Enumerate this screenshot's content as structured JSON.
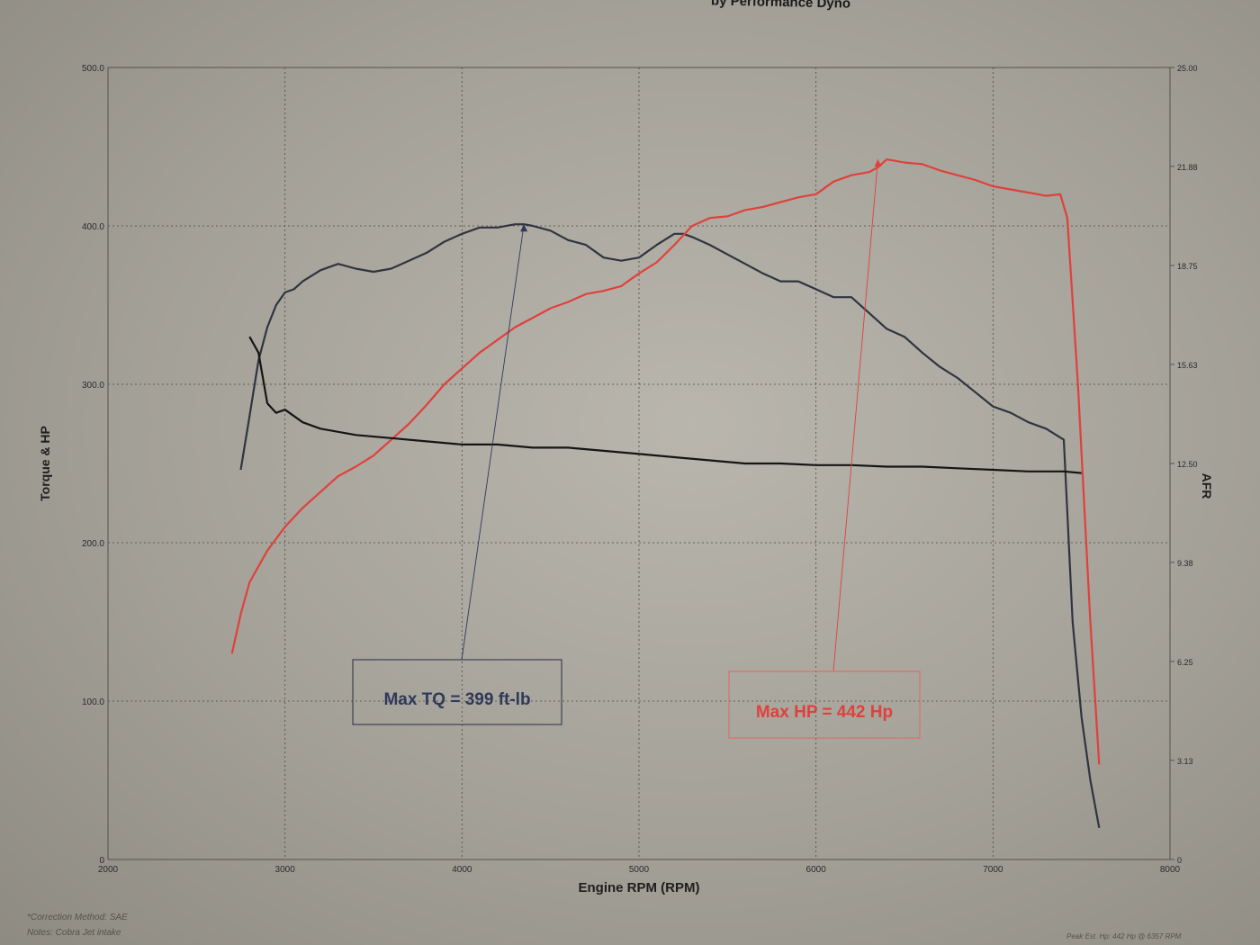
{
  "header": "by Performance Dyno",
  "chart_data": {
    "type": "line",
    "xlabel": "Engine RPM (RPM)",
    "ylabel_left": "Torque & HP",
    "ylabel_right": "AFR",
    "xlim": [
      2000,
      8000
    ],
    "ylim_left": [
      0,
      500
    ],
    "ylim_right": [
      0,
      25
    ],
    "x_ticks": [
      "2000",
      "3000",
      "4000",
      "5000",
      "6000",
      "7000",
      "8000"
    ],
    "y_ticks_left": [
      "0",
      "100.0",
      "200.0",
      "300.0",
      "400.0",
      "500.0"
    ],
    "y_ticks_right": [
      "0",
      "3.13",
      "6.25",
      "9.38",
      "12.50",
      "15.63",
      "18.75",
      "21.88",
      "25.00"
    ],
    "grid": true,
    "series": [
      {
        "name": "Torque",
        "axis": "left",
        "color": "#2f3440",
        "x": [
          2750,
          2800,
          2850,
          2900,
          2950,
          3000,
          3050,
          3100,
          3200,
          3300,
          3400,
          3500,
          3600,
          3700,
          3800,
          3900,
          4000,
          4100,
          4200,
          4300,
          4350,
          4400,
          4500,
          4600,
          4700,
          4800,
          4900,
          5000,
          5100,
          5200,
          5250,
          5300,
          5400,
          5500,
          5600,
          5700,
          5800,
          5900,
          6000,
          6100,
          6200,
          6300,
          6400,
          6500,
          6600,
          6700,
          6800,
          6900,
          7000,
          7100,
          7200,
          7300,
          7400,
          7450,
          7500,
          7550,
          7600
        ],
        "y": [
          246,
          280,
          315,
          336,
          350,
          358,
          360,
          365,
          372,
          376,
          373,
          371,
          373,
          378,
          383,
          390,
          395,
          399,
          399,
          401,
          401,
          400,
          397,
          391,
          388,
          380,
          378,
          380,
          388,
          395,
          395,
          393,
          388,
          382,
          376,
          370,
          365,
          365,
          360,
          355,
          355,
          345,
          335,
          330,
          320,
          311,
          304,
          295,
          286,
          282,
          276,
          272,
          265,
          150,
          90,
          50,
          20
        ]
      },
      {
        "name": "HP",
        "axis": "left",
        "color": "#e0403c",
        "x": [
          2700,
          2750,
          2800,
          2900,
          3000,
          3100,
          3200,
          3300,
          3400,
          3500,
          3600,
          3700,
          3800,
          3900,
          4000,
          4100,
          4200,
          4300,
          4400,
          4500,
          4600,
          4700,
          4800,
          4900,
          5000,
          5100,
          5200,
          5300,
          5400,
          5500,
          5600,
          5700,
          5800,
          5900,
          6000,
          6100,
          6200,
          6300,
          6350,
          6400,
          6500,
          6600,
          6700,
          6800,
          6900,
          7000,
          7100,
          7200,
          7300,
          7380,
          7420,
          7480,
          7550,
          7600
        ],
        "y": [
          130,
          155,
          175,
          195,
          210,
          222,
          232,
          242,
          248,
          255,
          265,
          275,
          287,
          300,
          310,
          320,
          328,
          336,
          342,
          348,
          352,
          357,
          359,
          362,
          370,
          377,
          388,
          400,
          405,
          406,
          410,
          412,
          415,
          418,
          420,
          428,
          432,
          434,
          437,
          442,
          440,
          439,
          435,
          432,
          429,
          425,
          423,
          421,
          419,
          420,
          405,
          300,
          150,
          60
        ]
      },
      {
        "name": "AFR",
        "axis": "right",
        "color": "#151515",
        "x": [
          2800,
          2850,
          2900,
          2950,
          3000,
          3050,
          3100,
          3200,
          3400,
          3600,
          3800,
          4000,
          4200,
          4400,
          4600,
          4800,
          5000,
          5200,
          5400,
          5600,
          5800,
          6000,
          6200,
          6400,
          6600,
          6800,
          7000,
          7200,
          7400,
          7500
        ],
        "y": [
          16.5,
          16.0,
          14.4,
          14.1,
          14.2,
          14.0,
          13.8,
          13.6,
          13.4,
          13.3,
          13.2,
          13.1,
          13.1,
          13.0,
          13.0,
          12.9,
          12.8,
          12.7,
          12.6,
          12.5,
          12.5,
          12.45,
          12.45,
          12.4,
          12.4,
          12.35,
          12.3,
          12.25,
          12.25,
          12.2
        ]
      }
    ],
    "annotations": [
      {
        "text": "Max TQ =  399 ft-lb",
        "x": 4350,
        "y": 401,
        "color": "#2f3a5a"
      },
      {
        "text": "Max HP =  442 Hp",
        "x": 6350,
        "y": 442,
        "color": "#e0403c"
      }
    ],
    "footnotes": [
      "*Correction Method: SAE",
      "Notes: Cobra Jet intake"
    ],
    "footer_right": "Peak Est. Hp: 442 Hp @ 6357 RPM"
  }
}
